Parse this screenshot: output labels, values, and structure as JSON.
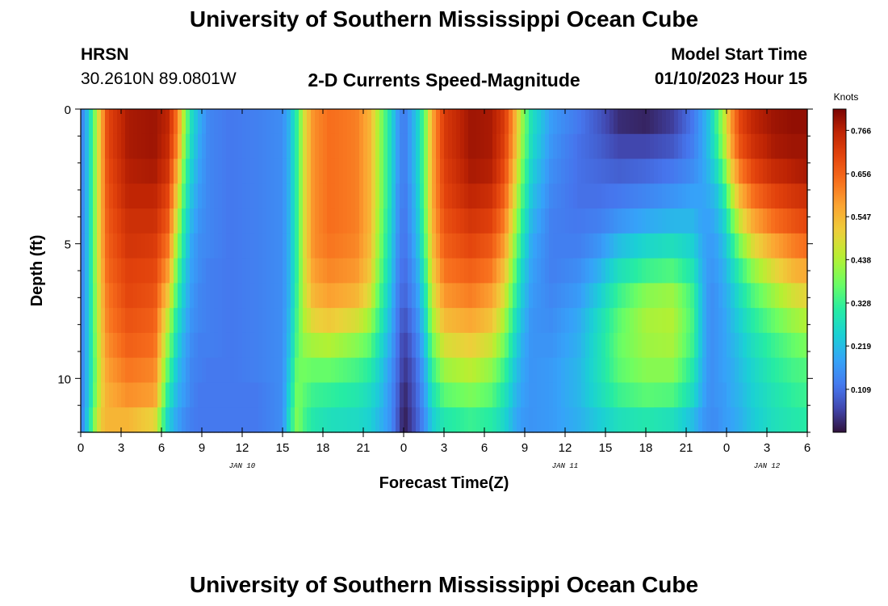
{
  "header": {
    "title": "University of Southern Mississippi Ocean Cube",
    "station": "HRSN",
    "coords": "30.2610N  89.0801W",
    "plot_title": "2-D Currents Speed-Magnitude",
    "model_start_label": "Model Start Time",
    "model_start_value": "01/10/2023 Hour 15"
  },
  "footer": {
    "title": "University of Southern Mississippi Ocean Cube"
  },
  "chart_data": {
    "type": "heatmap",
    "xlabel": "Forecast Time(Z)",
    "ylabel": "Depth (ft)",
    "x_ticks": [
      "0",
      "3",
      "6",
      "9",
      "12",
      "15",
      "18",
      "21",
      "0",
      "3",
      "6",
      "9",
      "12",
      "15",
      "18",
      "21",
      "0",
      "3",
      "6"
    ],
    "date_labels": [
      {
        "text": "JAN 10",
        "at_hour": 12
      },
      {
        "text": "JAN 11",
        "at_hour": 36
      },
      {
        "text": "JAN 12",
        "at_hour": 51
      }
    ],
    "x_range_hours": [
      0,
      54
    ],
    "y_ticks": [
      "0",
      "5",
      "10"
    ],
    "y_tick_values": [
      0,
      5,
      10
    ],
    "y_range_ft": [
      0,
      12
    ],
    "colorbar": {
      "unit": "Knots",
      "min": 0.0,
      "max": 0.82,
      "labels": [
        "0.766",
        "0.656",
        "0.547",
        "0.438",
        "0.328",
        "0.219",
        "0.109"
      ],
      "label_values": [
        0.766,
        0.656,
        0.547,
        0.438,
        0.328,
        0.219,
        0.109
      ]
    },
    "columns_hours": [
      0,
      0.5,
      1,
      1.5,
      2,
      3.5,
      5.5,
      6.5,
      7.2,
      7.7,
      8.2,
      8.8,
      9.5,
      11,
      13,
      15,
      15.6,
      16.1,
      16.6,
      17.3,
      18.5,
      20.5,
      21.5,
      22.2,
      23,
      23.5,
      24,
      24.3,
      25,
      25.6,
      26.1,
      27,
      29,
      30.5,
      31.5,
      32.2,
      32.8,
      33.5,
      35,
      37,
      38.5,
      40,
      42,
      44,
      45.5,
      46.2,
      46.8,
      47.2,
      47.8,
      48.3,
      49,
      50,
      51.5,
      53,
      54
    ],
    "profiles": [
      [
        0.12,
        0.12,
        0.12,
        0.12,
        0.12,
        0.12,
        0.12,
        0.12,
        0.12,
        0.12,
        0.12,
        0.12,
        0.12
      ],
      [
        0.22,
        0.22,
        0.22,
        0.22,
        0.22,
        0.22,
        0.22,
        0.22,
        0.22,
        0.22,
        0.22,
        0.22,
        0.24
      ],
      [
        0.38,
        0.38,
        0.38,
        0.38,
        0.38,
        0.38,
        0.38,
        0.37,
        0.37,
        0.36,
        0.35,
        0.36,
        0.4
      ],
      [
        0.55,
        0.55,
        0.55,
        0.55,
        0.55,
        0.55,
        0.54,
        0.53,
        0.52,
        0.51,
        0.5,
        0.5,
        0.52
      ],
      [
        0.7,
        0.7,
        0.69,
        0.68,
        0.67,
        0.66,
        0.65,
        0.63,
        0.62,
        0.6,
        0.58,
        0.56,
        0.55
      ],
      [
        0.78,
        0.78,
        0.77,
        0.76,
        0.74,
        0.73,
        0.71,
        0.7,
        0.68,
        0.66,
        0.63,
        0.6,
        0.55
      ],
      [
        0.79,
        0.79,
        0.78,
        0.76,
        0.74,
        0.72,
        0.7,
        0.68,
        0.66,
        0.64,
        0.61,
        0.58,
        0.5
      ],
      [
        0.76,
        0.75,
        0.73,
        0.7,
        0.67,
        0.63,
        0.58,
        0.52,
        0.45,
        0.4,
        0.35,
        0.3,
        0.25
      ],
      [
        0.62,
        0.6,
        0.55,
        0.5,
        0.45,
        0.4,
        0.36,
        0.32,
        0.28,
        0.25,
        0.22,
        0.2,
        0.18
      ],
      [
        0.42,
        0.4,
        0.36,
        0.33,
        0.3,
        0.28,
        0.25,
        0.23,
        0.21,
        0.19,
        0.18,
        0.17,
        0.15
      ],
      [
        0.28,
        0.27,
        0.25,
        0.23,
        0.21,
        0.19,
        0.18,
        0.17,
        0.16,
        0.15,
        0.14,
        0.14,
        0.13
      ],
      [
        0.2,
        0.19,
        0.18,
        0.17,
        0.16,
        0.15,
        0.15,
        0.14,
        0.14,
        0.13,
        0.13,
        0.12,
        0.12
      ],
      [
        0.14,
        0.14,
        0.14,
        0.14,
        0.14,
        0.14,
        0.13,
        0.13,
        0.13,
        0.13,
        0.12,
        0.12,
        0.12
      ],
      [
        0.12,
        0.12,
        0.12,
        0.12,
        0.12,
        0.12,
        0.12,
        0.12,
        0.12,
        0.12,
        0.12,
        0.12,
        0.12
      ],
      [
        0.13,
        0.13,
        0.13,
        0.13,
        0.13,
        0.13,
        0.13,
        0.13,
        0.13,
        0.13,
        0.13,
        0.12,
        0.12
      ],
      [
        0.15,
        0.15,
        0.15,
        0.15,
        0.15,
        0.15,
        0.15,
        0.15,
        0.15,
        0.15,
        0.15,
        0.15,
        0.15
      ],
      [
        0.22,
        0.22,
        0.22,
        0.22,
        0.22,
        0.22,
        0.22,
        0.22,
        0.23,
        0.24,
        0.26,
        0.28,
        0.3
      ],
      [
        0.33,
        0.33,
        0.33,
        0.33,
        0.33,
        0.33,
        0.33,
        0.34,
        0.35,
        0.36,
        0.38,
        0.39,
        0.4
      ],
      [
        0.48,
        0.48,
        0.48,
        0.48,
        0.48,
        0.48,
        0.47,
        0.46,
        0.44,
        0.41,
        0.38,
        0.36,
        0.34
      ],
      [
        0.6,
        0.6,
        0.6,
        0.6,
        0.6,
        0.6,
        0.58,
        0.55,
        0.5,
        0.43,
        0.37,
        0.33,
        0.3
      ],
      [
        0.64,
        0.64,
        0.64,
        0.64,
        0.64,
        0.63,
        0.61,
        0.58,
        0.52,
        0.44,
        0.37,
        0.32,
        0.28
      ],
      [
        0.62,
        0.62,
        0.62,
        0.62,
        0.62,
        0.61,
        0.59,
        0.55,
        0.48,
        0.4,
        0.34,
        0.3,
        0.27
      ],
      [
        0.55,
        0.55,
        0.55,
        0.55,
        0.55,
        0.54,
        0.52,
        0.48,
        0.42,
        0.36,
        0.31,
        0.27,
        0.25
      ],
      [
        0.42,
        0.42,
        0.42,
        0.42,
        0.41,
        0.4,
        0.38,
        0.35,
        0.32,
        0.28,
        0.25,
        0.23,
        0.21
      ],
      [
        0.28,
        0.28,
        0.28,
        0.28,
        0.27,
        0.26,
        0.25,
        0.23,
        0.21,
        0.19,
        0.17,
        0.16,
        0.16
      ],
      [
        0.18,
        0.18,
        0.18,
        0.17,
        0.17,
        0.16,
        0.15,
        0.14,
        0.13,
        0.12,
        0.11,
        0.1,
        0.09
      ],
      [
        0.12,
        0.12,
        0.12,
        0.12,
        0.11,
        0.11,
        0.1,
        0.09,
        0.07,
        0.05,
        0.04,
        0.02,
        0.01
      ],
      [
        0.15,
        0.15,
        0.15,
        0.14,
        0.14,
        0.13,
        0.12,
        0.11,
        0.09,
        0.07,
        0.05,
        0.04,
        0.03
      ],
      [
        0.24,
        0.24,
        0.24,
        0.23,
        0.22,
        0.21,
        0.19,
        0.17,
        0.15,
        0.13,
        0.11,
        0.1,
        0.09
      ],
      [
        0.38,
        0.38,
        0.38,
        0.38,
        0.37,
        0.35,
        0.32,
        0.29,
        0.26,
        0.23,
        0.2,
        0.18,
        0.16
      ],
      [
        0.56,
        0.56,
        0.56,
        0.56,
        0.55,
        0.53,
        0.5,
        0.46,
        0.42,
        0.37,
        0.32,
        0.28,
        0.24
      ],
      [
        0.72,
        0.72,
        0.71,
        0.7,
        0.68,
        0.66,
        0.63,
        0.59,
        0.54,
        0.48,
        0.42,
        0.36,
        0.3
      ],
      [
        0.79,
        0.79,
        0.78,
        0.76,
        0.73,
        0.7,
        0.66,
        0.62,
        0.57,
        0.51,
        0.45,
        0.39,
        0.33
      ],
      [
        0.78,
        0.78,
        0.77,
        0.74,
        0.71,
        0.67,
        0.63,
        0.58,
        0.53,
        0.47,
        0.41,
        0.36,
        0.31
      ],
      [
        0.72,
        0.71,
        0.69,
        0.66,
        0.62,
        0.58,
        0.53,
        0.48,
        0.43,
        0.38,
        0.33,
        0.29,
        0.26
      ],
      [
        0.58,
        0.57,
        0.54,
        0.5,
        0.46,
        0.42,
        0.38,
        0.34,
        0.3,
        0.27,
        0.24,
        0.22,
        0.2
      ],
      [
        0.42,
        0.41,
        0.38,
        0.35,
        0.32,
        0.29,
        0.26,
        0.24,
        0.22,
        0.2,
        0.19,
        0.18,
        0.17
      ],
      [
        0.28,
        0.27,
        0.25,
        0.23,
        0.21,
        0.19,
        0.18,
        0.17,
        0.16,
        0.16,
        0.16,
        0.16,
        0.16
      ],
      [
        0.17,
        0.16,
        0.15,
        0.14,
        0.13,
        0.13,
        0.13,
        0.14,
        0.15,
        0.16,
        0.17,
        0.17,
        0.17
      ],
      [
        0.12,
        0.11,
        0.11,
        0.11,
        0.12,
        0.13,
        0.15,
        0.17,
        0.19,
        0.2,
        0.21,
        0.21,
        0.2
      ],
      [
        0.08,
        0.09,
        0.1,
        0.11,
        0.13,
        0.16,
        0.2,
        0.24,
        0.27,
        0.28,
        0.28,
        0.27,
        0.24
      ],
      [
        0.03,
        0.06,
        0.09,
        0.12,
        0.16,
        0.22,
        0.28,
        0.33,
        0.36,
        0.37,
        0.36,
        0.33,
        0.28
      ],
      [
        0.02,
        0.06,
        0.1,
        0.14,
        0.19,
        0.26,
        0.33,
        0.4,
        0.43,
        0.42,
        0.4,
        0.36,
        0.3
      ],
      [
        0.05,
        0.08,
        0.12,
        0.16,
        0.21,
        0.28,
        0.35,
        0.42,
        0.44,
        0.43,
        0.4,
        0.35,
        0.28
      ],
      [
        0.12,
        0.13,
        0.15,
        0.18,
        0.21,
        0.25,
        0.29,
        0.33,
        0.34,
        0.33,
        0.3,
        0.27,
        0.22
      ],
      [
        0.18,
        0.18,
        0.18,
        0.18,
        0.18,
        0.19,
        0.2,
        0.21,
        0.21,
        0.21,
        0.2,
        0.19,
        0.17
      ],
      [
        0.24,
        0.24,
        0.22,
        0.2,
        0.18,
        0.17,
        0.16,
        0.15,
        0.15,
        0.15,
        0.15,
        0.15,
        0.15
      ],
      [
        0.32,
        0.3,
        0.26,
        0.22,
        0.2,
        0.18,
        0.17,
        0.16,
        0.16,
        0.16,
        0.16,
        0.16,
        0.15
      ],
      [
        0.44,
        0.42,
        0.36,
        0.3,
        0.25,
        0.22,
        0.2,
        0.19,
        0.18,
        0.18,
        0.18,
        0.17,
        0.17
      ],
      [
        0.58,
        0.56,
        0.5,
        0.42,
        0.35,
        0.29,
        0.25,
        0.22,
        0.21,
        0.2,
        0.19,
        0.19,
        0.18
      ],
      [
        0.7,
        0.68,
        0.62,
        0.55,
        0.47,
        0.39,
        0.32,
        0.28,
        0.25,
        0.23,
        0.22,
        0.21,
        0.2
      ],
      [
        0.76,
        0.74,
        0.7,
        0.64,
        0.57,
        0.49,
        0.41,
        0.35,
        0.31,
        0.28,
        0.26,
        0.25,
        0.24
      ],
      [
        0.79,
        0.78,
        0.75,
        0.7,
        0.64,
        0.57,
        0.49,
        0.42,
        0.37,
        0.33,
        0.31,
        0.29,
        0.28
      ],
      [
        0.8,
        0.79,
        0.77,
        0.73,
        0.68,
        0.62,
        0.55,
        0.48,
        0.42,
        0.37,
        0.34,
        0.32,
        0.3
      ],
      [
        0.8,
        0.79,
        0.78,
        0.74,
        0.7,
        0.64,
        0.57,
        0.5,
        0.44,
        0.39,
        0.35,
        0.33,
        0.31
      ]
    ]
  }
}
